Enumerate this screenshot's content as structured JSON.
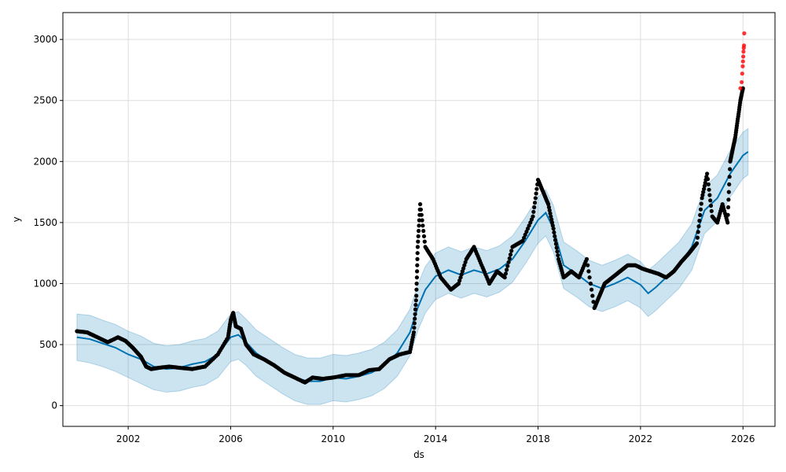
{
  "chart_data": {
    "type": "line",
    "title": "",
    "xlabel": "ds",
    "ylabel": "y",
    "xlim": [
      1999.45,
      2027.25
    ],
    "ylim": [
      -170,
      3220
    ],
    "grid": true,
    "x_ticks": [
      2002,
      2006,
      2010,
      2014,
      2018,
      2022,
      2026
    ],
    "x_tick_labels": [
      "2002",
      "2006",
      "2010",
      "2014",
      "2018",
      "2022",
      "2026"
    ],
    "y_ticks": [
      0,
      500,
      1000,
      1500,
      2000,
      2500,
      3000
    ],
    "y_tick_labels": [
      "0",
      "500",
      "1000",
      "1500",
      "2000",
      "2500",
      "3000"
    ],
    "colors": {
      "forecast_line": "#0072B2",
      "interval_fill": "#0072B2",
      "actual_points": "#000000",
      "highlight_points": "#ff0000",
      "grid": "#dddddd"
    },
    "series": [
      {
        "kind": "forecast",
        "x": [
          2000.0,
          2000.5,
          2001.0,
          2001.5,
          2002.0,
          2002.5,
          2003.0,
          2003.5,
          2004.0,
          2004.5,
          2005.0,
          2005.5,
          2006.0,
          2006.3,
          2006.6,
          2007.0,
          2007.5,
          2008.0,
          2008.5,
          2009.0,
          2009.5,
          2010.0,
          2010.5,
          2011.0,
          2011.5,
          2012.0,
          2012.5,
          2013.0,
          2013.3,
          2013.6,
          2014.0,
          2014.5,
          2015.0,
          2015.5,
          2016.0,
          2016.5,
          2017.0,
          2017.5,
          2018.0,
          2018.3,
          2018.6,
          2019.0,
          2019.5,
          2020.0,
          2020.5,
          2021.0,
          2021.5,
          2022.0,
          2022.3,
          2022.6,
          2023.0,
          2023.5,
          2024.0,
          2024.5,
          2025.0,
          2025.5,
          2026.0,
          2026.2
        ],
        "y": [
          560,
          545,
          510,
          475,
          420,
          380,
          320,
          300,
          310,
          340,
          360,
          420,
          560,
          580,
          520,
          430,
          360,
          290,
          230,
          200,
          200,
          230,
          220,
          240,
          270,
          330,
          430,
          600,
          800,
          950,
          1060,
          1110,
          1070,
          1110,
          1080,
          1120,
          1200,
          1350,
          1520,
          1580,
          1450,
          1150,
          1080,
          1000,
          960,
          1000,
          1050,
          990,
          920,
          970,
          1050,
          1150,
          1300,
          1600,
          1700,
          1900,
          2050,
          2080
        ],
        "lower": [
          370,
          350,
          320,
          280,
          230,
          180,
          130,
          110,
          120,
          150,
          170,
          230,
          360,
          380,
          330,
          240,
          170,
          100,
          40,
          10,
          10,
          40,
          30,
          50,
          80,
          140,
          240,
          410,
          610,
          760,
          870,
          920,
          880,
          920,
          890,
          930,
          1010,
          1160,
          1330,
          1390,
          1260,
          960,
          890,
          810,
          770,
          810,
          860,
          800,
          730,
          780,
          860,
          960,
          1110,
          1410,
          1510,
          1710,
          1860,
          1890
        ],
        "upper": [
          750,
          740,
          700,
          665,
          610,
          570,
          510,
          490,
          500,
          530,
          550,
          610,
          750,
          770,
          710,
          620,
          550,
          480,
          420,
          390,
          390,
          420,
          410,
          430,
          460,
          520,
          620,
          790,
          990,
          1140,
          1250,
          1300,
          1260,
          1300,
          1270,
          1310,
          1390,
          1540,
          1710,
          1770,
          1640,
          1340,
          1270,
          1190,
          1150,
          1190,
          1240,
          1180,
          1110,
          1160,
          1240,
          1340,
          1490,
          1790,
          1890,
          2090,
          2240,
          2270
        ]
      },
      {
        "kind": "actual",
        "x": [
          2000.0,
          2000.4,
          2000.8,
          2001.2,
          2001.6,
          2001.9,
          2002.2,
          2002.5,
          2002.7,
          2002.9,
          2003.2,
          2003.6,
          2004.0,
          2004.5,
          2005.0,
          2005.5,
          2005.9,
          2006.0,
          2006.1,
          2006.2,
          2006.4,
          2006.6,
          2006.9,
          2007.3,
          2007.7,
          2008.1,
          2008.5,
          2008.9,
          2009.2,
          2009.6,
          2010.0,
          2010.5,
          2011.0,
          2011.4,
          2011.8,
          2012.2,
          2012.6,
          2013.0,
          2013.15,
          2013.25,
          2013.3,
          2013.4,
          2013.6,
          2013.9,
          2014.2,
          2014.6,
          2014.9,
          2015.2,
          2015.5,
          2015.8,
          2016.1,
          2016.4,
          2016.7,
          2017.0,
          2017.4,
          2017.8,
          2018.0,
          2018.2,
          2018.4,
          2018.6,
          2018.8,
          2019.0,
          2019.3,
          2019.6,
          2019.9,
          2020.2,
          2020.4,
          2020.6,
          2020.9,
          2021.2,
          2021.5,
          2021.8,
          2022.1,
          2022.4,
          2022.7,
          2023.0,
          2023.3,
          2023.6,
          2023.9,
          2024.2,
          2024.4,
          2024.6,
          2024.8,
          2025.0,
          2025.2,
          2025.4,
          2025.5,
          2025.6,
          2025.7,
          2025.8,
          2025.9,
          2026.0
        ],
        "y": [
          610,
          600,
          560,
          520,
          560,
          530,
          470,
          400,
          320,
          300,
          310,
          320,
          310,
          300,
          320,
          420,
          560,
          700,
          760,
          650,
          630,
          500,
          420,
          380,
          330,
          270,
          230,
          190,
          230,
          220,
          230,
          250,
          250,
          290,
          300,
          380,
          420,
          440,
          600,
          900,
          1300,
          1650,
          1300,
          1200,
          1050,
          950,
          1000,
          1200,
          1300,
          1150,
          1000,
          1100,
          1050,
          1300,
          1350,
          1550,
          1850,
          1750,
          1650,
          1450,
          1200,
          1050,
          1100,
          1050,
          1200,
          800,
          900,
          1000,
          1050,
          1100,
          1150,
          1150,
          1120,
          1100,
          1080,
          1050,
          1100,
          1180,
          1250,
          1330,
          1700,
          1900,
          1550,
          1500,
          1650,
          1500,
          2000,
          2100,
          2200,
          2350,
          2500,
          2600
        ]
      },
      {
        "kind": "highlight",
        "x": [
          2025.9,
          2025.95,
          2025.97,
          2025.99,
          2026.0,
          2026.01,
          2026.02,
          2026.03,
          2026.04,
          2026.05
        ],
        "y": [
          2600,
          2650,
          2720,
          2780,
          2820,
          2860,
          2900,
          2930,
          2950,
          3050
        ]
      }
    ]
  }
}
